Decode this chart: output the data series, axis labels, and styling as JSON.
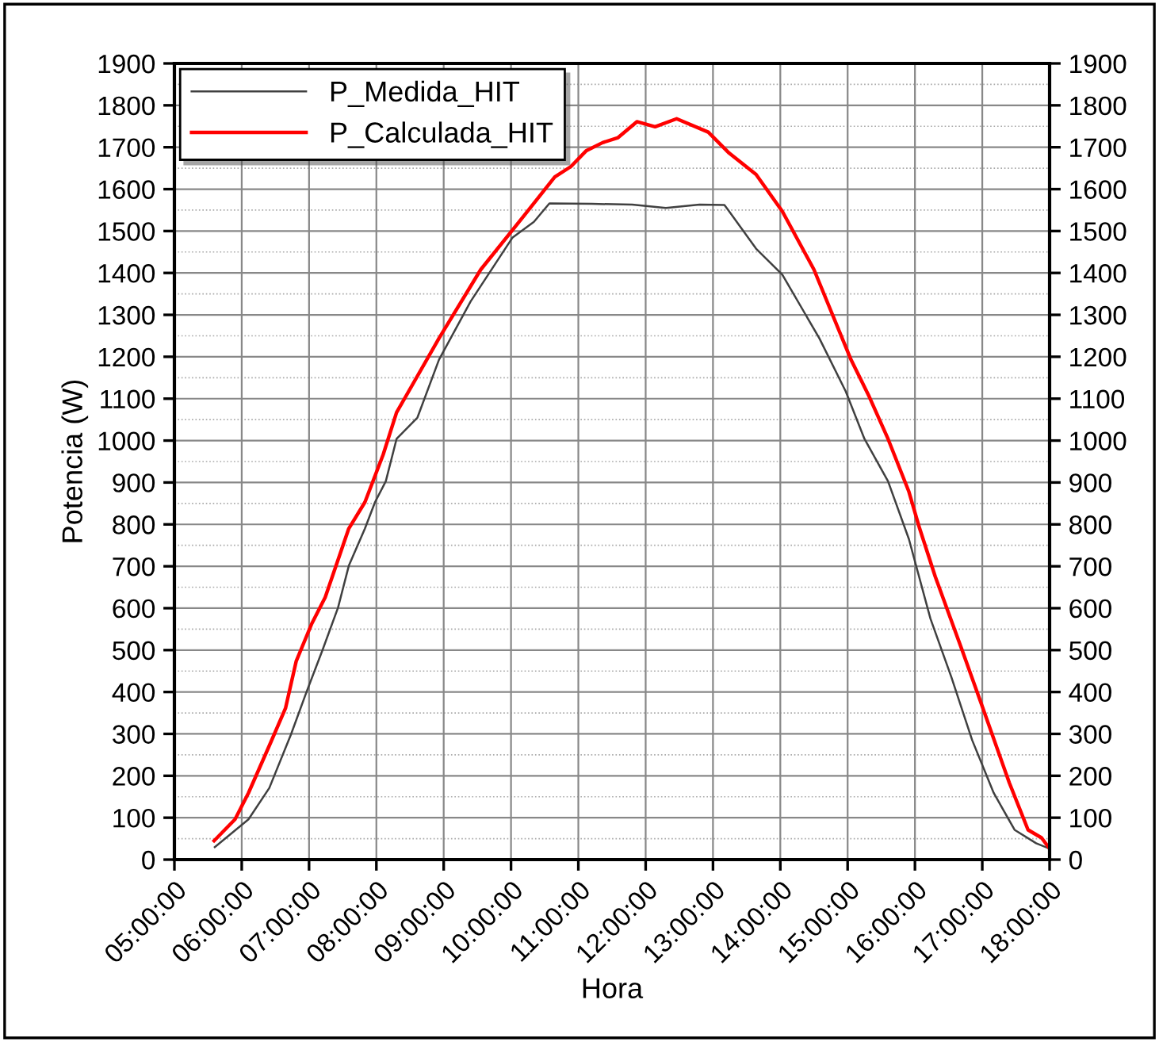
{
  "chart_data": {
    "type": "line",
    "xlabel": "Hora",
    "ylabel": "Potencia (W)",
    "xlim": [
      5,
      18
    ],
    "ylim": [
      0,
      1900
    ],
    "y2lim": [
      0,
      1900
    ],
    "xticks": [
      {
        "value": 5,
        "label": "05:00:00"
      },
      {
        "value": 6,
        "label": "06:00:00"
      },
      {
        "value": 7,
        "label": "07:00:00"
      },
      {
        "value": 8,
        "label": "08:00:00"
      },
      {
        "value": 9,
        "label": "09:00:00"
      },
      {
        "value": 10,
        "label": "10:00:00"
      },
      {
        "value": 11,
        "label": "11:00:00"
      },
      {
        "value": 12,
        "label": "12:00:00"
      },
      {
        "value": 13,
        "label": "13:00:00"
      },
      {
        "value": 14,
        "label": "14:00:00"
      },
      {
        "value": 15,
        "label": "15:00:00"
      },
      {
        "value": 16,
        "label": "16:00:00"
      },
      {
        "value": 17,
        "label": "17:00:00"
      },
      {
        "value": 18,
        "label": "18:00:00"
      }
    ],
    "yticks": [
      0,
      100,
      200,
      300,
      400,
      500,
      600,
      700,
      800,
      900,
      1000,
      1100,
      1200,
      1300,
      1400,
      1500,
      1600,
      1700,
      1800,
      1900
    ],
    "y2ticks": [
      0,
      100,
      200,
      300,
      400,
      500,
      600,
      700,
      800,
      900,
      1000,
      1100,
      1200,
      1300,
      1400,
      1500,
      1600,
      1700,
      1800,
      1900
    ],
    "grid": true,
    "legend": "top left",
    "line_style": "solid",
    "marker": "none",
    "series": [
      {
        "name": "P_Medida_HIT",
        "color": "#404040",
        "x": [
          5.6,
          6.1,
          6.41,
          6.73,
          6.96,
          7.2,
          7.43,
          7.59,
          7.83,
          7.98,
          8.14,
          8.3,
          8.61,
          8.93,
          9.4,
          10.02,
          10.34,
          10.57,
          11.2,
          11.8,
          12.3,
          12.8,
          13.17,
          13.24,
          13.64,
          14.03,
          14.58,
          14.97,
          15.25,
          15.6,
          15.91,
          16.23,
          16.54,
          16.85,
          17.17,
          17.48,
          17.8,
          18.0
        ],
        "values": [
          30,
          96,
          171,
          298,
          399,
          500,
          601,
          701,
          790,
          853,
          903,
          1004,
          1055,
          1193,
          1332,
          1484,
          1522,
          1566,
          1565,
          1563,
          1555,
          1563,
          1562,
          1547,
          1458,
          1396,
          1244,
          1118,
          1004,
          903,
          765,
          575,
          436,
          285,
          159,
          71,
          39,
          26
        ]
      },
      {
        "name": "P_Calculada_HIT",
        "color": "#ff0000",
        "x": [
          5.59,
          5.9,
          6.1,
          6.41,
          6.65,
          6.81,
          7.04,
          7.24,
          7.59,
          7.83,
          8.1,
          8.3,
          8.93,
          9.55,
          10.18,
          10.65,
          10.89,
          11.12,
          11.36,
          11.59,
          11.87,
          12.14,
          12.46,
          12.93,
          13.24,
          13.64,
          14.03,
          14.5,
          15.05,
          15.32,
          15.6,
          15.91,
          16.07,
          16.3,
          16.7,
          17.01,
          17.4,
          17.68,
          17.88,
          18.0
        ],
        "values": [
          45,
          96,
          159,
          272,
          361,
          474,
          563,
          626,
          790,
          853,
          966,
          1067,
          1244,
          1408,
          1534,
          1629,
          1654,
          1692,
          1711,
          1723,
          1761,
          1749,
          1768,
          1736,
          1686,
          1635,
          1547,
          1408,
          1193,
          1105,
          1004,
          878,
          790,
          676,
          500,
          361,
          184,
          71,
          52,
          26
        ]
      }
    ]
  }
}
